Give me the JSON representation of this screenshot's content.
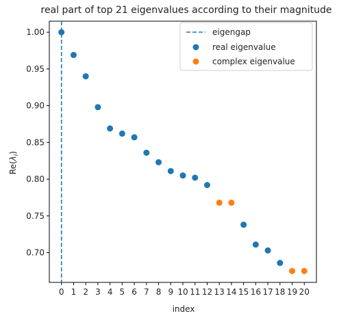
{
  "chart_data": {
    "type": "scatter",
    "title": "real part of top 21 eigenvalues according to their magnitude",
    "xlabel": "index",
    "ylabel_prefix": "Re(",
    "ylabel_symbol": "λ",
    "ylabel_subscript": "i",
    "ylabel_suffix": ")",
    "xlim": [
      -1,
      21
    ],
    "ylim": [
      0.6595,
      1.015
    ],
    "x_ticks": [
      0,
      1,
      2,
      3,
      4,
      5,
      6,
      7,
      8,
      9,
      10,
      11,
      12,
      13,
      14,
      15,
      16,
      17,
      18,
      19,
      20
    ],
    "x_tick_labels": [
      "0",
      "1",
      "2",
      "3",
      "4",
      "5",
      "6",
      "7",
      "8",
      "9",
      "10",
      "11",
      "12",
      "13",
      "14",
      "15",
      "16",
      "17",
      "18",
      "19",
      "20"
    ],
    "y_ticks": [
      0.7,
      0.75,
      0.8,
      0.85,
      0.9,
      0.95,
      1.0
    ],
    "y_tick_labels": [
      "0.70",
      "0.75",
      "0.80",
      "0.85",
      "0.90",
      "0.95",
      "1.00"
    ],
    "eigengap": {
      "name": "eigengap",
      "x": 0,
      "color": "#1f77b4",
      "style": "dashed"
    },
    "series": [
      {
        "name": "real eigenvalue",
        "color": "#1f77b4",
        "points": [
          {
            "x": 0,
            "y": 1.0
          },
          {
            "x": 1,
            "y": 0.969
          },
          {
            "x": 2,
            "y": 0.94
          },
          {
            "x": 3,
            "y": 0.898
          },
          {
            "x": 4,
            "y": 0.869
          },
          {
            "x": 5,
            "y": 0.862
          },
          {
            "x": 6,
            "y": 0.857
          },
          {
            "x": 7,
            "y": 0.836
          },
          {
            "x": 8,
            "y": 0.823
          },
          {
            "x": 9,
            "y": 0.811
          },
          {
            "x": 10,
            "y": 0.805
          },
          {
            "x": 11,
            "y": 0.802
          },
          {
            "x": 12,
            "y": 0.792
          },
          {
            "x": 15,
            "y": 0.738
          },
          {
            "x": 16,
            "y": 0.711
          },
          {
            "x": 17,
            "y": 0.703
          },
          {
            "x": 18,
            "y": 0.686
          }
        ]
      },
      {
        "name": "complex eigenvalue",
        "color": "#ff7f0e",
        "points": [
          {
            "x": 13,
            "y": 0.768
          },
          {
            "x": 14,
            "y": 0.768
          },
          {
            "x": 19,
            "y": 0.675
          },
          {
            "x": 20,
            "y": 0.675
          }
        ]
      }
    ],
    "legend_position": "top-right",
    "grid": false
  }
}
